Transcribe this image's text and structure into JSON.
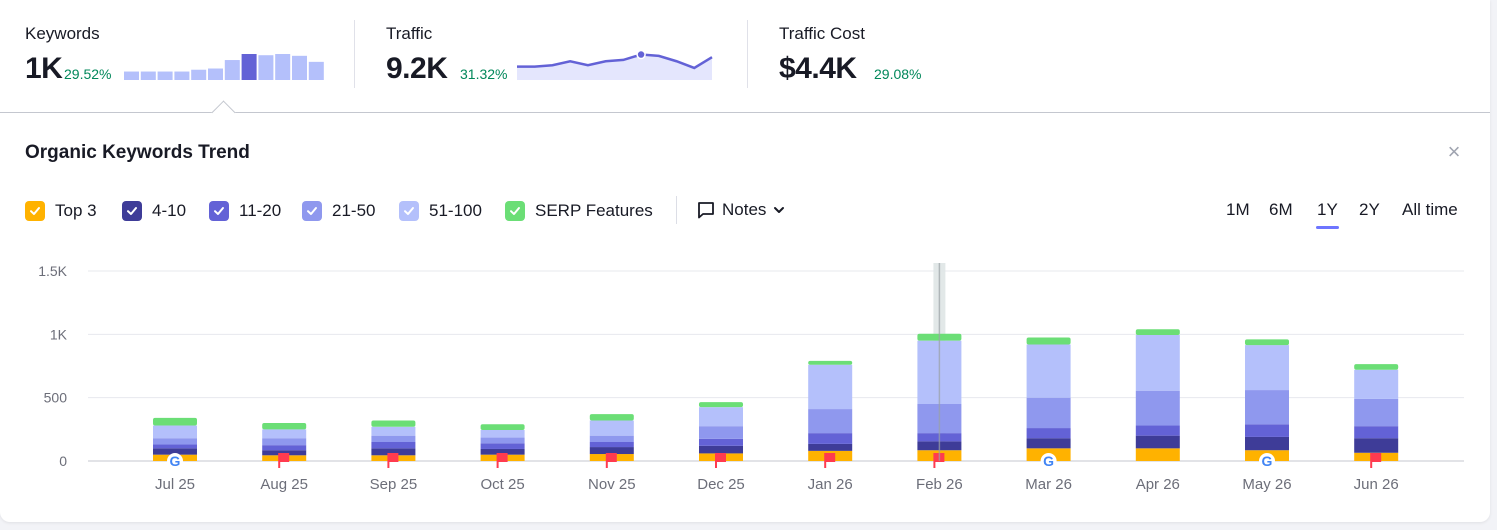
{
  "summary": {
    "keywords": {
      "title": "Keywords",
      "value": "1K",
      "delta": "29.52%",
      "sparkline": [
        14,
        14,
        14,
        14,
        17,
        19,
        33,
        43,
        41,
        43,
        40,
        30
      ],
      "highlight_index": 7
    },
    "traffic": {
      "title": "Traffic",
      "value": "9.2K",
      "delta": "31.32%",
      "sparkline": [
        10,
        10,
        11,
        14,
        11,
        14,
        15,
        19,
        18,
        14,
        9,
        17
      ],
      "marker_index": 7
    },
    "traffic_cost": {
      "title": "Traffic Cost",
      "value": "$4.4K",
      "delta": "29.08%"
    }
  },
  "panel": {
    "title": "Organic Keywords Trend",
    "close": "×"
  },
  "legend": [
    {
      "label": "Top 3",
      "color": "#ffb200"
    },
    {
      "label": "4-10",
      "color": "#3e3c98"
    },
    {
      "label": "11-20",
      "color": "#6362d6"
    },
    {
      "label": "21-50",
      "color": "#8f98ee"
    },
    {
      "label": "51-100",
      "color": "#b4c0fb"
    },
    {
      "label": "SERP Features",
      "color": "#6bde76"
    }
  ],
  "notes_label": "Notes",
  "ranges": [
    "1M",
    "6M",
    "1Y",
    "2Y",
    "All time"
  ],
  "active_range": "1Y",
  "colors": {
    "top3": "#ffb200",
    "4-10": "#3e3c98",
    "11-20": "#6362d6",
    "21-50": "#8f98ee",
    "51-100": "#b4c0fb",
    "serp": "#6bde76",
    "accent": "#6e75ff",
    "positive": "#00875a"
  },
  "chart_data": {
    "type": "bar",
    "stacked": true,
    "categories": [
      "Jul 25",
      "Aug 25",
      "Sep 25",
      "Oct 25",
      "Nov 25",
      "Dec 25",
      "Jan 26",
      "Feb 26",
      "Mar 26",
      "Apr 26",
      "May 26",
      "Jun 26"
    ],
    "y_ticks": [
      "0",
      "500",
      "1K",
      "1.5K"
    ],
    "ylim": [
      0,
      1500
    ],
    "grid": true,
    "series": [
      {
        "name": "Top 3",
        "values": [
          50,
          45,
          45,
          50,
          55,
          60,
          80,
          85,
          100,
          100,
          85,
          65
        ]
      },
      {
        "name": "4-10",
        "values": [
          50,
          40,
          55,
          45,
          55,
          60,
          55,
          70,
          80,
          100,
          105,
          115
        ]
      },
      {
        "name": "11-20",
        "values": [
          30,
          40,
          50,
          45,
          40,
          55,
          85,
          65,
          80,
          80,
          100,
          95
        ]
      },
      {
        "name": "21-50",
        "values": [
          50,
          55,
          50,
          45,
          50,
          100,
          190,
          230,
          240,
          275,
          270,
          215
        ]
      },
      {
        "name": "51-100",
        "values": [
          100,
          70,
          70,
          60,
          120,
          150,
          350,
          500,
          420,
          440,
          355,
          230
        ]
      },
      {
        "name": "SERP Features",
        "values": [
          60,
          50,
          50,
          45,
          50,
          40,
          30,
          55,
          55,
          45,
          45,
          45
        ]
      }
    ],
    "note_markers": [
      "google",
      "flag",
      "flag",
      "flag",
      "flag",
      "flag",
      "flag",
      "flag",
      "google",
      "none",
      "google",
      "flag"
    ],
    "hover_category": "Feb 26"
  }
}
